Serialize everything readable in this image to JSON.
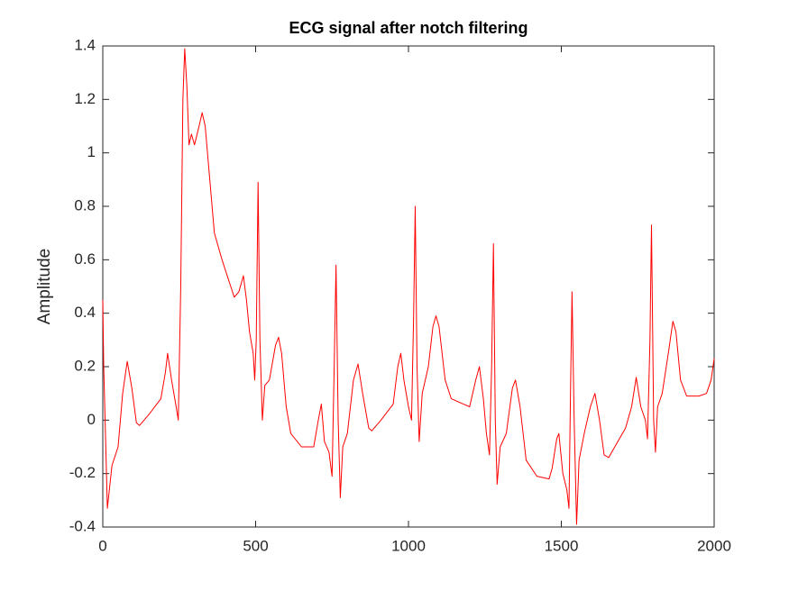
{
  "chart_data": {
    "type": "line",
    "title": "ECG signal after notch filtering",
    "y_label": "Amplitude",
    "x": [
      0,
      3,
      15,
      30,
      50,
      65,
      80,
      95,
      110,
      120,
      150,
      190,
      205,
      212,
      225,
      240,
      247,
      255,
      262,
      268,
      275,
      282,
      290,
      300,
      315,
      325,
      335,
      350,
      365,
      390,
      430,
      445,
      460,
      470,
      480,
      492,
      497,
      502,
      508,
      514,
      522,
      530,
      545,
      565,
      575,
      585,
      600,
      615,
      650,
      690,
      705,
      715,
      725,
      740,
      750,
      757,
      763,
      770,
      777,
      785,
      800,
      820,
      835,
      850,
      870,
      880,
      910,
      950,
      965,
      975,
      985,
      1000,
      1010,
      1017,
      1022,
      1028,
      1035,
      1045,
      1065,
      1080,
      1090,
      1100,
      1120,
      1140,
      1180,
      1200,
      1220,
      1232,
      1245,
      1255,
      1265,
      1272,
      1278,
      1284,
      1290,
      1300,
      1320,
      1340,
      1350,
      1365,
      1385,
      1420,
      1460,
      1470,
      1485,
      1492,
      1505,
      1518,
      1525,
      1530,
      1535,
      1542,
      1550,
      1558,
      1575,
      1595,
      1610,
      1625,
      1640,
      1655,
      1680,
      1710,
      1730,
      1745,
      1760,
      1775,
      1782,
      1790,
      1795,
      1802,
      1808,
      1815,
      1830,
      1850,
      1865,
      1875,
      1890,
      1910,
      1950,
      1975,
      1990,
      2000
    ],
    "series": [
      {
        "color": "#ff0000",
        "values": [
          0.45,
          0.2,
          -0.33,
          -0.17,
          -0.1,
          0.1,
          0.22,
          0.12,
          -0.01,
          -0.02,
          0.02,
          0.08,
          0.18,
          0.25,
          0.15,
          0.05,
          0.0,
          0.5,
          1.2,
          1.39,
          1.25,
          1.03,
          1.07,
          1.03,
          1.1,
          1.15,
          1.1,
          0.9,
          0.7,
          0.6,
          0.46,
          0.48,
          0.54,
          0.45,
          0.33,
          0.25,
          0.15,
          0.3,
          0.89,
          0.3,
          0.0,
          0.13,
          0.15,
          0.28,
          0.31,
          0.25,
          0.05,
          -0.05,
          -0.1,
          -0.1,
          0.0,
          0.06,
          -0.08,
          -0.12,
          -0.21,
          0.2,
          0.58,
          0.0,
          -0.29,
          -0.1,
          -0.05,
          0.15,
          0.21,
          0.1,
          -0.03,
          -0.04,
          0.0,
          0.06,
          0.2,
          0.25,
          0.15,
          0.05,
          0.0,
          0.4,
          0.8,
          0.2,
          -0.08,
          0.1,
          0.2,
          0.35,
          0.39,
          0.35,
          0.15,
          0.08,
          0.06,
          0.05,
          0.15,
          0.2,
          0.08,
          -0.05,
          -0.13,
          0.2,
          0.66,
          0.0,
          -0.24,
          -0.1,
          -0.05,
          0.12,
          0.15,
          0.05,
          -0.15,
          -0.21,
          -0.22,
          -0.18,
          -0.07,
          -0.05,
          -0.2,
          -0.26,
          -0.33,
          0.1,
          0.48,
          0.0,
          -0.39,
          -0.15,
          -0.05,
          0.05,
          0.1,
          0.0,
          -0.13,
          -0.14,
          -0.09,
          -0.03,
          0.05,
          0.16,
          0.05,
          0.0,
          -0.07,
          0.3,
          0.73,
          0.0,
          -0.12,
          0.05,
          0.1,
          0.25,
          0.37,
          0.33,
          0.15,
          0.09,
          0.09,
          0.1,
          0.15,
          0.23
        ]
      }
    ],
    "xlim": [
      0,
      2000
    ],
    "ylim": [
      -0.4,
      1.4
    ],
    "xticks": [
      0,
      500,
      1000,
      1500,
      2000
    ],
    "yticks": [
      -0.4,
      -0.2,
      0,
      0.2,
      0.4,
      0.6,
      0.8,
      1,
      1.2,
      1.4
    ]
  }
}
